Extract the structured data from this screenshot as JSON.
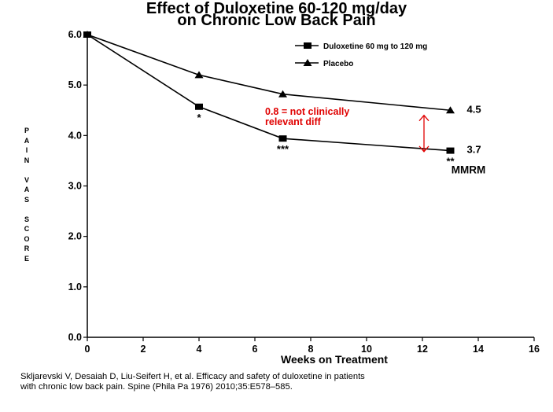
{
  "chart_data": {
    "type": "line",
    "title_line1": "Effect of Duloxetine 60-120 mg/day",
    "title_line2": "on Chronic Low Back Pain",
    "xlabel": "Weeks on Treatment",
    "ylabel_letters": [
      "P",
      "A",
      "I",
      "N",
      "",
      "V",
      "A",
      "S",
      "",
      "S",
      "C",
      "O",
      "R",
      "E"
    ],
    "xlim": [
      0,
      16
    ],
    "ylim": [
      0,
      6
    ],
    "x_ticks": [
      "0",
      "2",
      "4",
      "6",
      "8",
      "10",
      "12",
      "14",
      "16"
    ],
    "y_ticks": [
      "0.0",
      "1.0",
      "2.0",
      "3.0",
      "4.0",
      "5.0",
      "6.0"
    ],
    "series": [
      {
        "name": "Duloxetine 60 mg to 120 mg",
        "marker": "square",
        "color": "#000000",
        "x": [
          0,
          4,
          7,
          13
        ],
        "y": [
          6.0,
          4.57,
          3.94,
          3.7
        ]
      },
      {
        "name": "Placebo",
        "marker": "triangle",
        "color": "#000000",
        "x": [
          0,
          4,
          7,
          13
        ],
        "y": [
          6.0,
          5.2,
          4.82,
          4.5
        ]
      }
    ],
    "significance_marks": [
      {
        "x": 4,
        "label": "*"
      },
      {
        "x": 7,
        "label": "***"
      },
      {
        "x": 13,
        "label": "**"
      }
    ],
    "end_labels": [
      {
        "label": "4.5",
        "y": 4.5
      },
      {
        "label": "3.7",
        "y": 3.7
      }
    ],
    "method_label": "MMRM",
    "annotation": {
      "line1": "0.8 = not clinically",
      "line2": "relevant diff",
      "color": "#e00000",
      "arrow_x": 12.0,
      "y_from": 4.4,
      "y_to": 3.68
    },
    "legend_position": "top-right",
    "grid": false
  },
  "citation": {
    "line1": "Skljarevski V, Desaiah D, Liu-Seifert H, et al. Efficacy and safety of duloxetine in patients",
    "line2": "with chronic low back pain. Spine (Phila Pa 1976) 2010;35:E578–585."
  }
}
